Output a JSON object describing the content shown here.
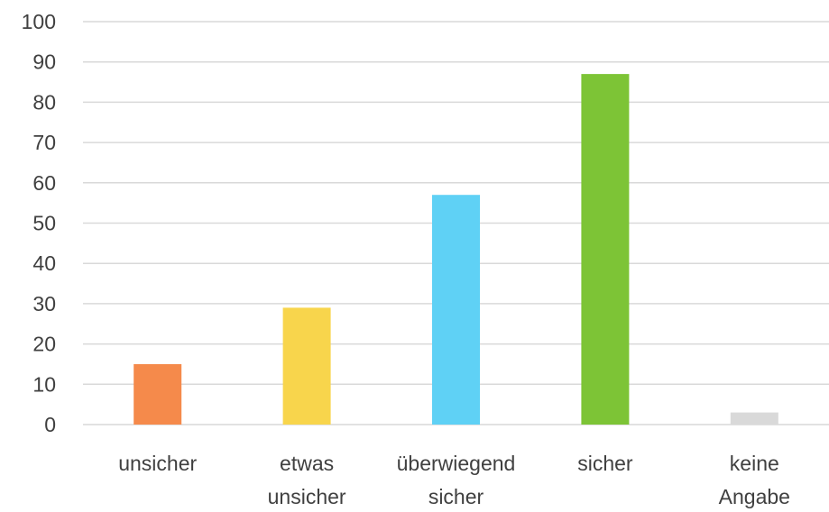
{
  "chart_data": {
    "type": "bar",
    "title": "",
    "xlabel": "",
    "ylabel": "",
    "categories": [
      [
        "unsicher"
      ],
      [
        "etwas",
        "unsicher"
      ],
      [
        "überwiegend",
        "sicher"
      ],
      [
        "sicher"
      ],
      [
        "keine",
        "Angabe"
      ]
    ],
    "values": [
      15,
      29,
      57,
      87,
      3
    ],
    "colors": [
      "#f58a4b",
      "#f8d54c",
      "#5fd1f5",
      "#7dc436",
      "#d9d9d9"
    ],
    "ylim": [
      0,
      100
    ],
    "yticks": [
      0,
      10,
      20,
      30,
      40,
      50,
      60,
      70,
      80,
      90,
      100
    ],
    "grid": true,
    "legend": "none"
  }
}
